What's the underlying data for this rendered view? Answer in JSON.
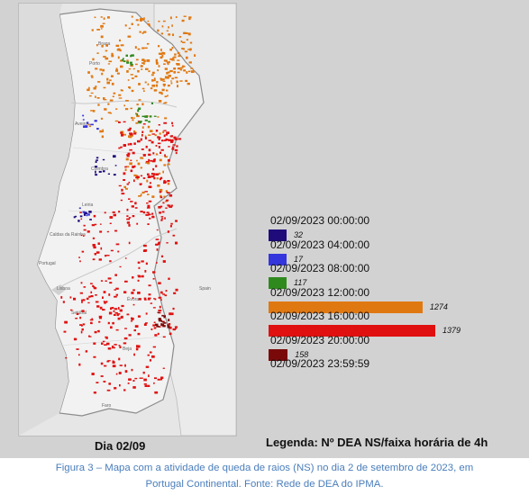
{
  "map": {
    "place_labels": [
      "Braga",
      "Porto",
      "Aveiro",
      "Coimbra",
      "Leiria",
      "Lisboa",
      "Setúbal",
      "Évora",
      "Beja",
      "Faro",
      "Caldas da Rainha",
      "Spain",
      "Portugal"
    ]
  },
  "legend": {
    "title": "Legenda: Nº DEA NS/faixa horária de 4h",
    "slots": [
      {
        "time": "02/09/2023 00:00:00",
        "count": "32",
        "value": 32,
        "color": "#1f0b7a"
      },
      {
        "time": "02/09/2023 04:00:00",
        "count": "17",
        "value": 17,
        "color": "#3535dd"
      },
      {
        "time": "02/09/2023 08:00:00",
        "count": "117",
        "value": 117,
        "color": "#2f8a1d"
      },
      {
        "time": "02/09/2023 12:00:00",
        "count": "1274",
        "value": 1274,
        "color": "#e07812"
      },
      {
        "time": "02/09/2023 16:00:00",
        "count": "1379",
        "value": 1379,
        "color": "#e01010"
      },
      {
        "time": "02/09/2023 20:00:00",
        "count": "158",
        "value": 158,
        "color": "#7a0a0a"
      }
    ],
    "end_time": "02/09/2023 23:59:59"
  },
  "day_label": "Dia 02/09",
  "caption_line1": "Figura 3 – Mapa com a atividade de queda de raios (NS) no dia 2 de setembro de 2023, em",
  "caption_line2": "Portugal Continental. Fonte: Rede de DEA do IPMA."
}
